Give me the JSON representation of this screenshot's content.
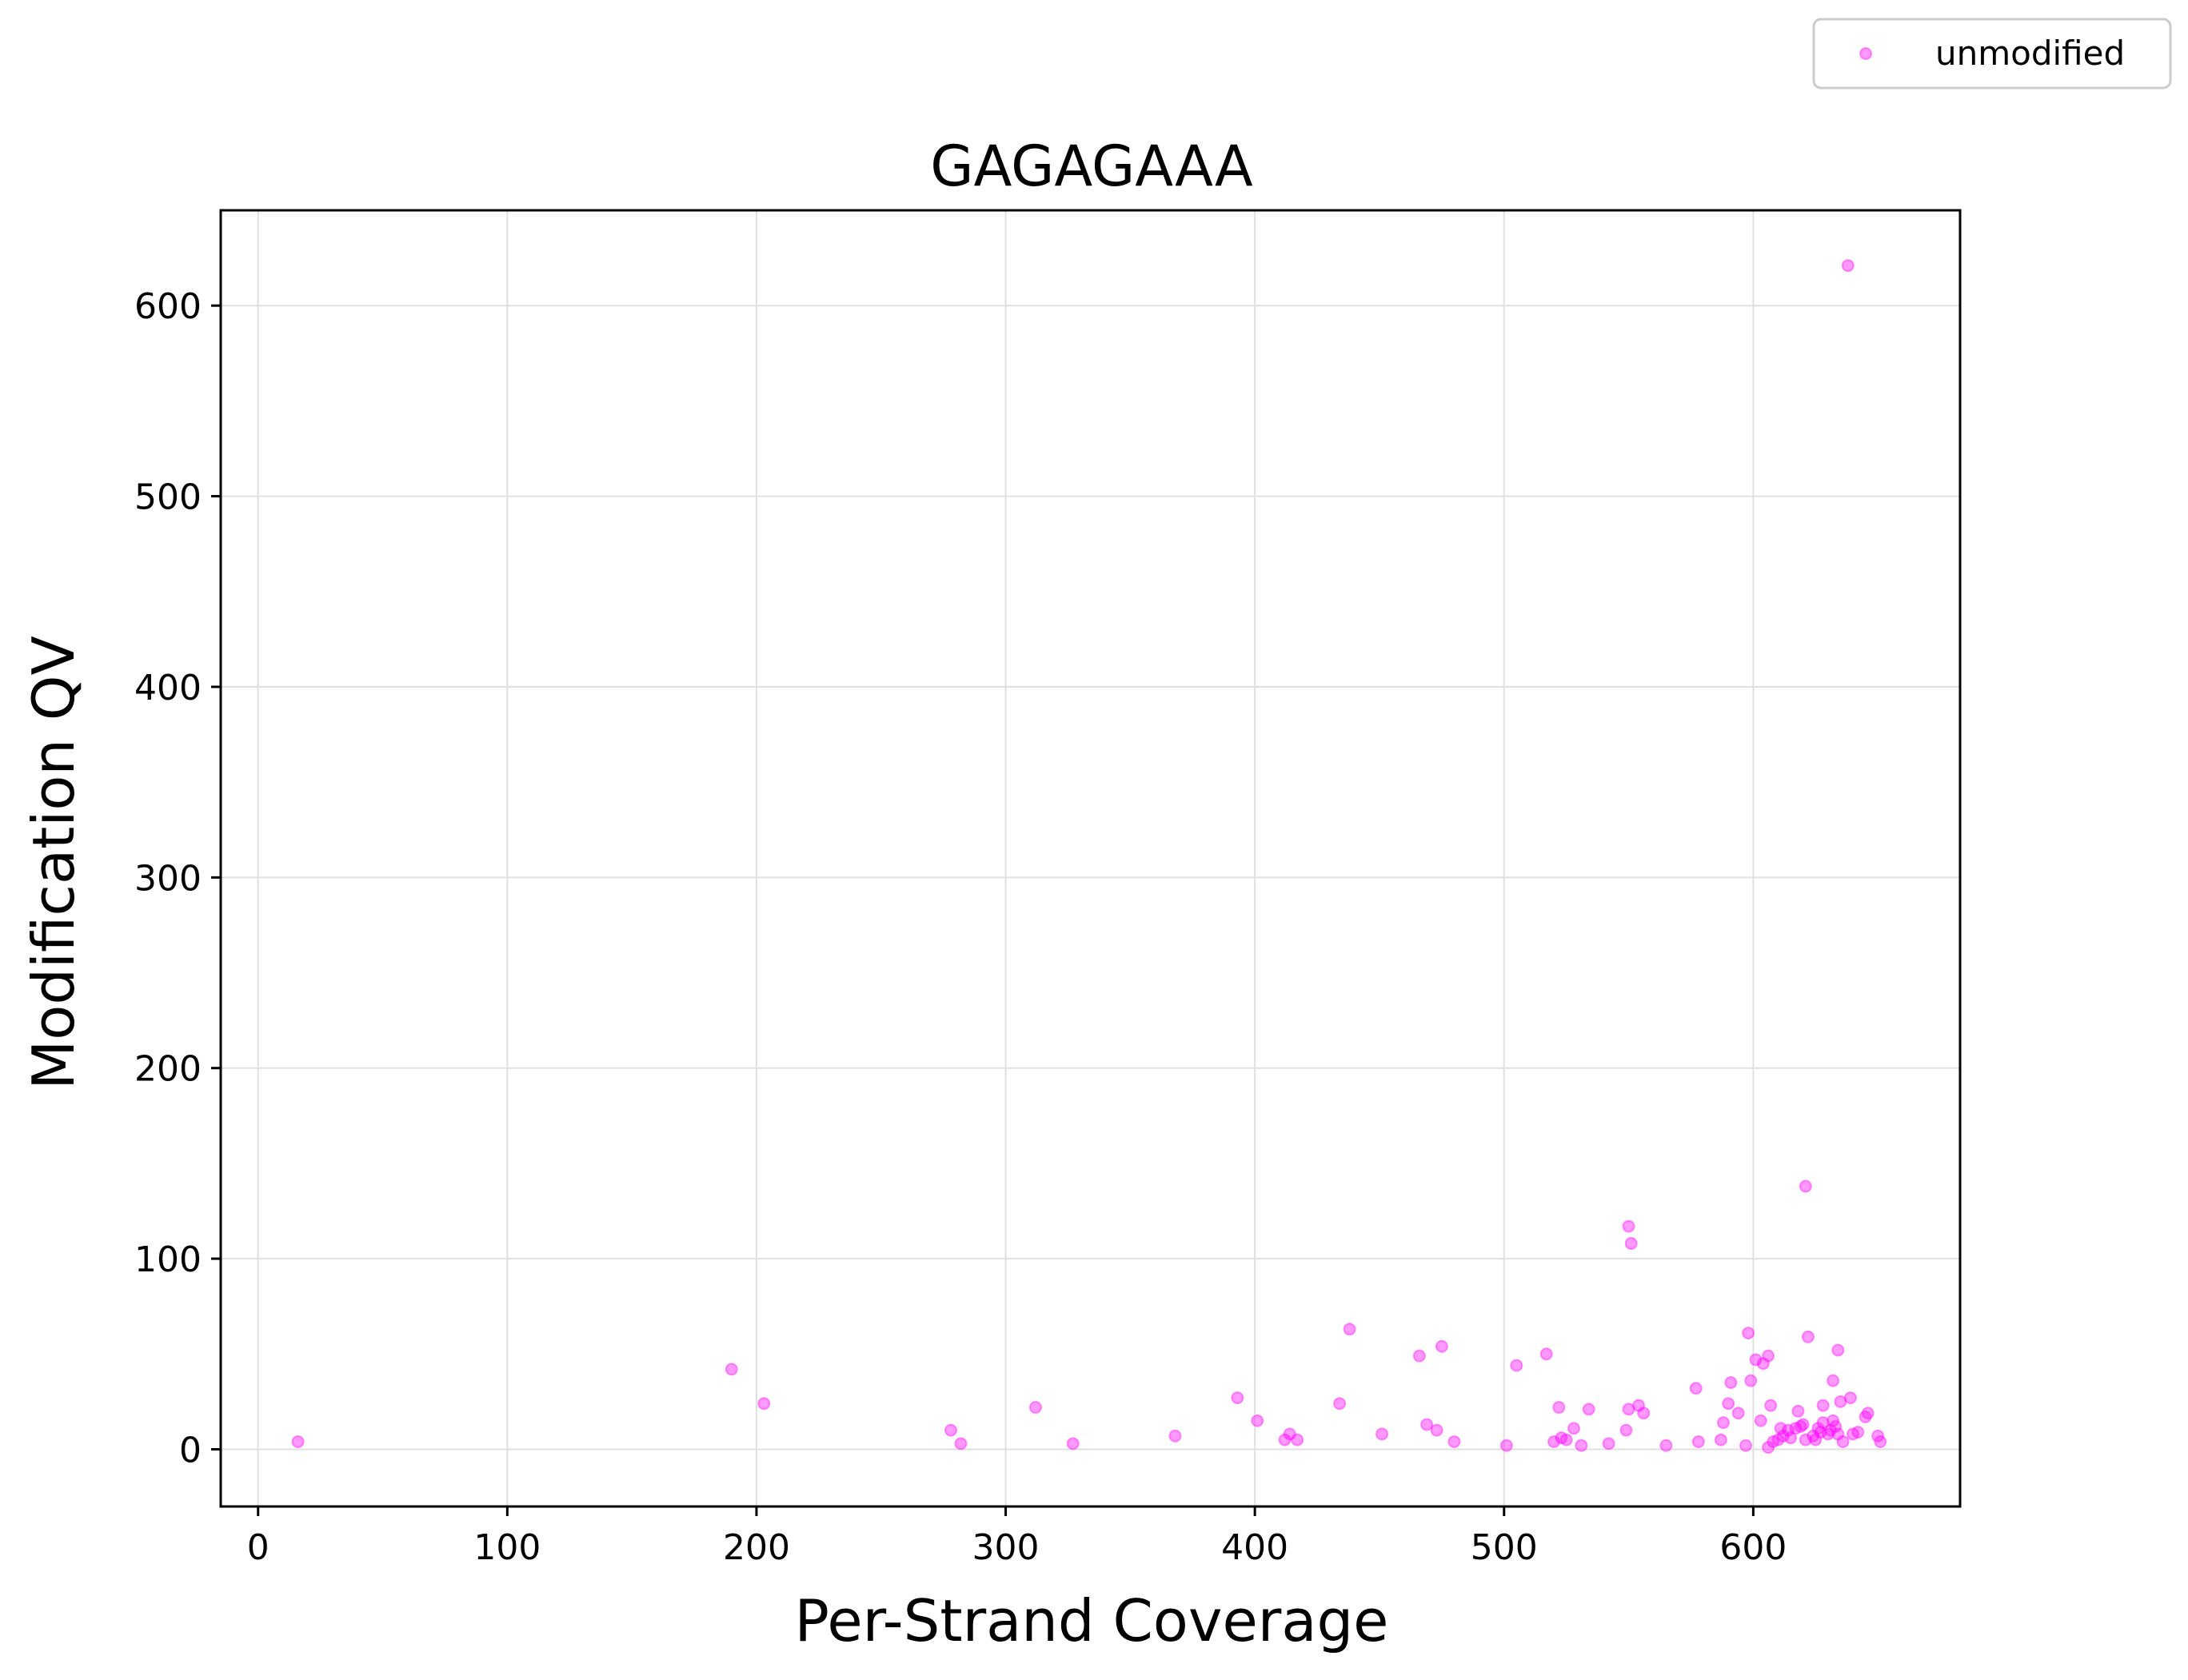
{
  "chart_data": {
    "type": "scatter",
    "title": "GAGAGAAA",
    "xlabel": "Per-Strand Coverage",
    "ylabel": "Modification QV",
    "xlim": [
      -15,
      683
    ],
    "ylim": [
      -30,
      650
    ],
    "xticks": [
      0,
      100,
      200,
      300,
      400,
      500,
      600
    ],
    "yticks": [
      0,
      100,
      200,
      300,
      400,
      500,
      600
    ],
    "grid": true,
    "legend": {
      "placement": "top-right (outside plot)"
    },
    "colors": {
      "series": "#ff00ff",
      "grid": "#e0e0e0"
    },
    "series": [
      {
        "name": "unmodified",
        "points": [
          [
            16,
            4
          ],
          [
            190,
            42
          ],
          [
            203,
            24
          ],
          [
            278,
            10
          ],
          [
            282,
            3
          ],
          [
            312,
            22
          ],
          [
            327,
            3
          ],
          [
            368,
            7
          ],
          [
            393,
            27
          ],
          [
            401,
            15
          ],
          [
            412,
            5
          ],
          [
            414,
            8
          ],
          [
            417,
            5
          ],
          [
            434,
            24
          ],
          [
            438,
            63
          ],
          [
            451,
            8
          ],
          [
            466,
            49
          ],
          [
            469,
            13
          ],
          [
            473,
            10
          ],
          [
            475,
            54
          ],
          [
            480,
            4
          ],
          [
            501,
            2
          ],
          [
            505,
            44
          ],
          [
            517,
            50
          ],
          [
            520,
            4
          ],
          [
            522,
            22
          ],
          [
            523,
            6
          ],
          [
            525,
            5
          ],
          [
            528,
            11
          ],
          [
            531,
            2
          ],
          [
            534,
            21
          ],
          [
            542,
            3
          ],
          [
            549,
            10
          ],
          [
            550,
            117
          ],
          [
            550,
            21
          ],
          [
            551,
            108
          ],
          [
            554,
            23
          ],
          [
            556,
            19
          ],
          [
            565,
            2
          ],
          [
            577,
            32
          ],
          [
            578,
            4
          ],
          [
            587,
            5
          ],
          [
            588,
            14
          ],
          [
            590,
            24
          ],
          [
            591,
            35
          ],
          [
            594,
            19
          ],
          [
            597,
            2
          ],
          [
            598,
            61
          ],
          [
            599,
            36
          ],
          [
            601,
            47
          ],
          [
            603,
            15
          ],
          [
            604,
            45
          ],
          [
            606,
            49
          ],
          [
            606,
            1
          ],
          [
            607,
            23
          ],
          [
            608,
            4
          ],
          [
            610,
            5
          ],
          [
            611,
            11
          ],
          [
            612,
            7
          ],
          [
            614,
            10
          ],
          [
            615,
            6
          ],
          [
            617,
            11
          ],
          [
            618,
            20
          ],
          [
            619,
            12
          ],
          [
            620,
            13
          ],
          [
            621,
            138
          ],
          [
            621,
            5
          ],
          [
            622,
            59
          ],
          [
            624,
            7
          ],
          [
            625,
            5
          ],
          [
            626,
            11
          ],
          [
            627,
            9
          ],
          [
            628,
            14
          ],
          [
            628,
            23
          ],
          [
            630,
            8
          ],
          [
            631,
            10
          ],
          [
            632,
            36
          ],
          [
            632,
            15
          ],
          [
            633,
            12
          ],
          [
            634,
            8
          ],
          [
            634,
            52
          ],
          [
            635,
            25
          ],
          [
            636,
            4
          ],
          [
            638,
            621
          ],
          [
            639,
            27
          ],
          [
            640,
            8
          ],
          [
            642,
            9
          ],
          [
            645,
            17
          ],
          [
            646,
            19
          ],
          [
            650,
            7
          ],
          [
            651,
            4
          ]
        ]
      }
    ]
  }
}
